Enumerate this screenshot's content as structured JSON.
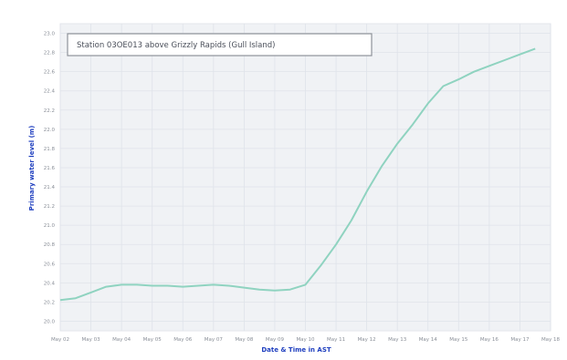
{
  "chart_data": {
    "type": "line",
    "title": "Station 03OE013 above Grizzly Rapids (Gull Island)",
    "xlabel": "Date & Time in AST",
    "ylabel": "Primary water level (m)",
    "x_ticks": [
      "May 02",
      "May 03",
      "May 04",
      "May 05",
      "May 06",
      "May 07",
      "May 08",
      "May 09",
      "May 10",
      "May 11",
      "May 12",
      "May 13",
      "May 14",
      "May 15",
      "May 16",
      "May 17",
      "May 18"
    ],
    "y_ticks": [
      "20.0",
      "20.2",
      "20.4",
      "20.6",
      "20.8",
      "21.0",
      "21.2",
      "21.4",
      "21.6",
      "21.8",
      "22.0",
      "22.2",
      "22.4",
      "22.6",
      "22.8",
      "23.0"
    ],
    "ylim": [
      19.9,
      23.1
    ],
    "grid": true,
    "colors": {
      "line": "#8fd3c0",
      "grid": "#dfe3ea",
      "plot_background": "#f0f2f5",
      "axis_title": "#1f3fbf"
    },
    "series": [
      {
        "x": [
          0,
          0.5,
          1,
          1.5,
          2,
          2.5,
          3,
          3.5,
          4,
          4.5,
          5,
          5.5,
          6,
          6.5,
          7,
          7.5,
          8,
          8.5,
          9,
          9.5,
          10,
          10.5,
          11,
          11.5,
          12,
          12.5,
          13,
          13.5,
          14,
          14.5,
          15,
          15.5
        ],
        "values": [
          20.22,
          20.24,
          20.3,
          20.36,
          20.38,
          20.38,
          20.37,
          20.37,
          20.36,
          20.37,
          20.38,
          20.37,
          20.35,
          20.33,
          20.32,
          20.33,
          20.38,
          20.58,
          20.8,
          21.05,
          21.35,
          21.62,
          21.85,
          22.05,
          22.27,
          22.45,
          22.52,
          22.6,
          22.66,
          22.72,
          22.78,
          22.84
        ]
      }
    ]
  }
}
